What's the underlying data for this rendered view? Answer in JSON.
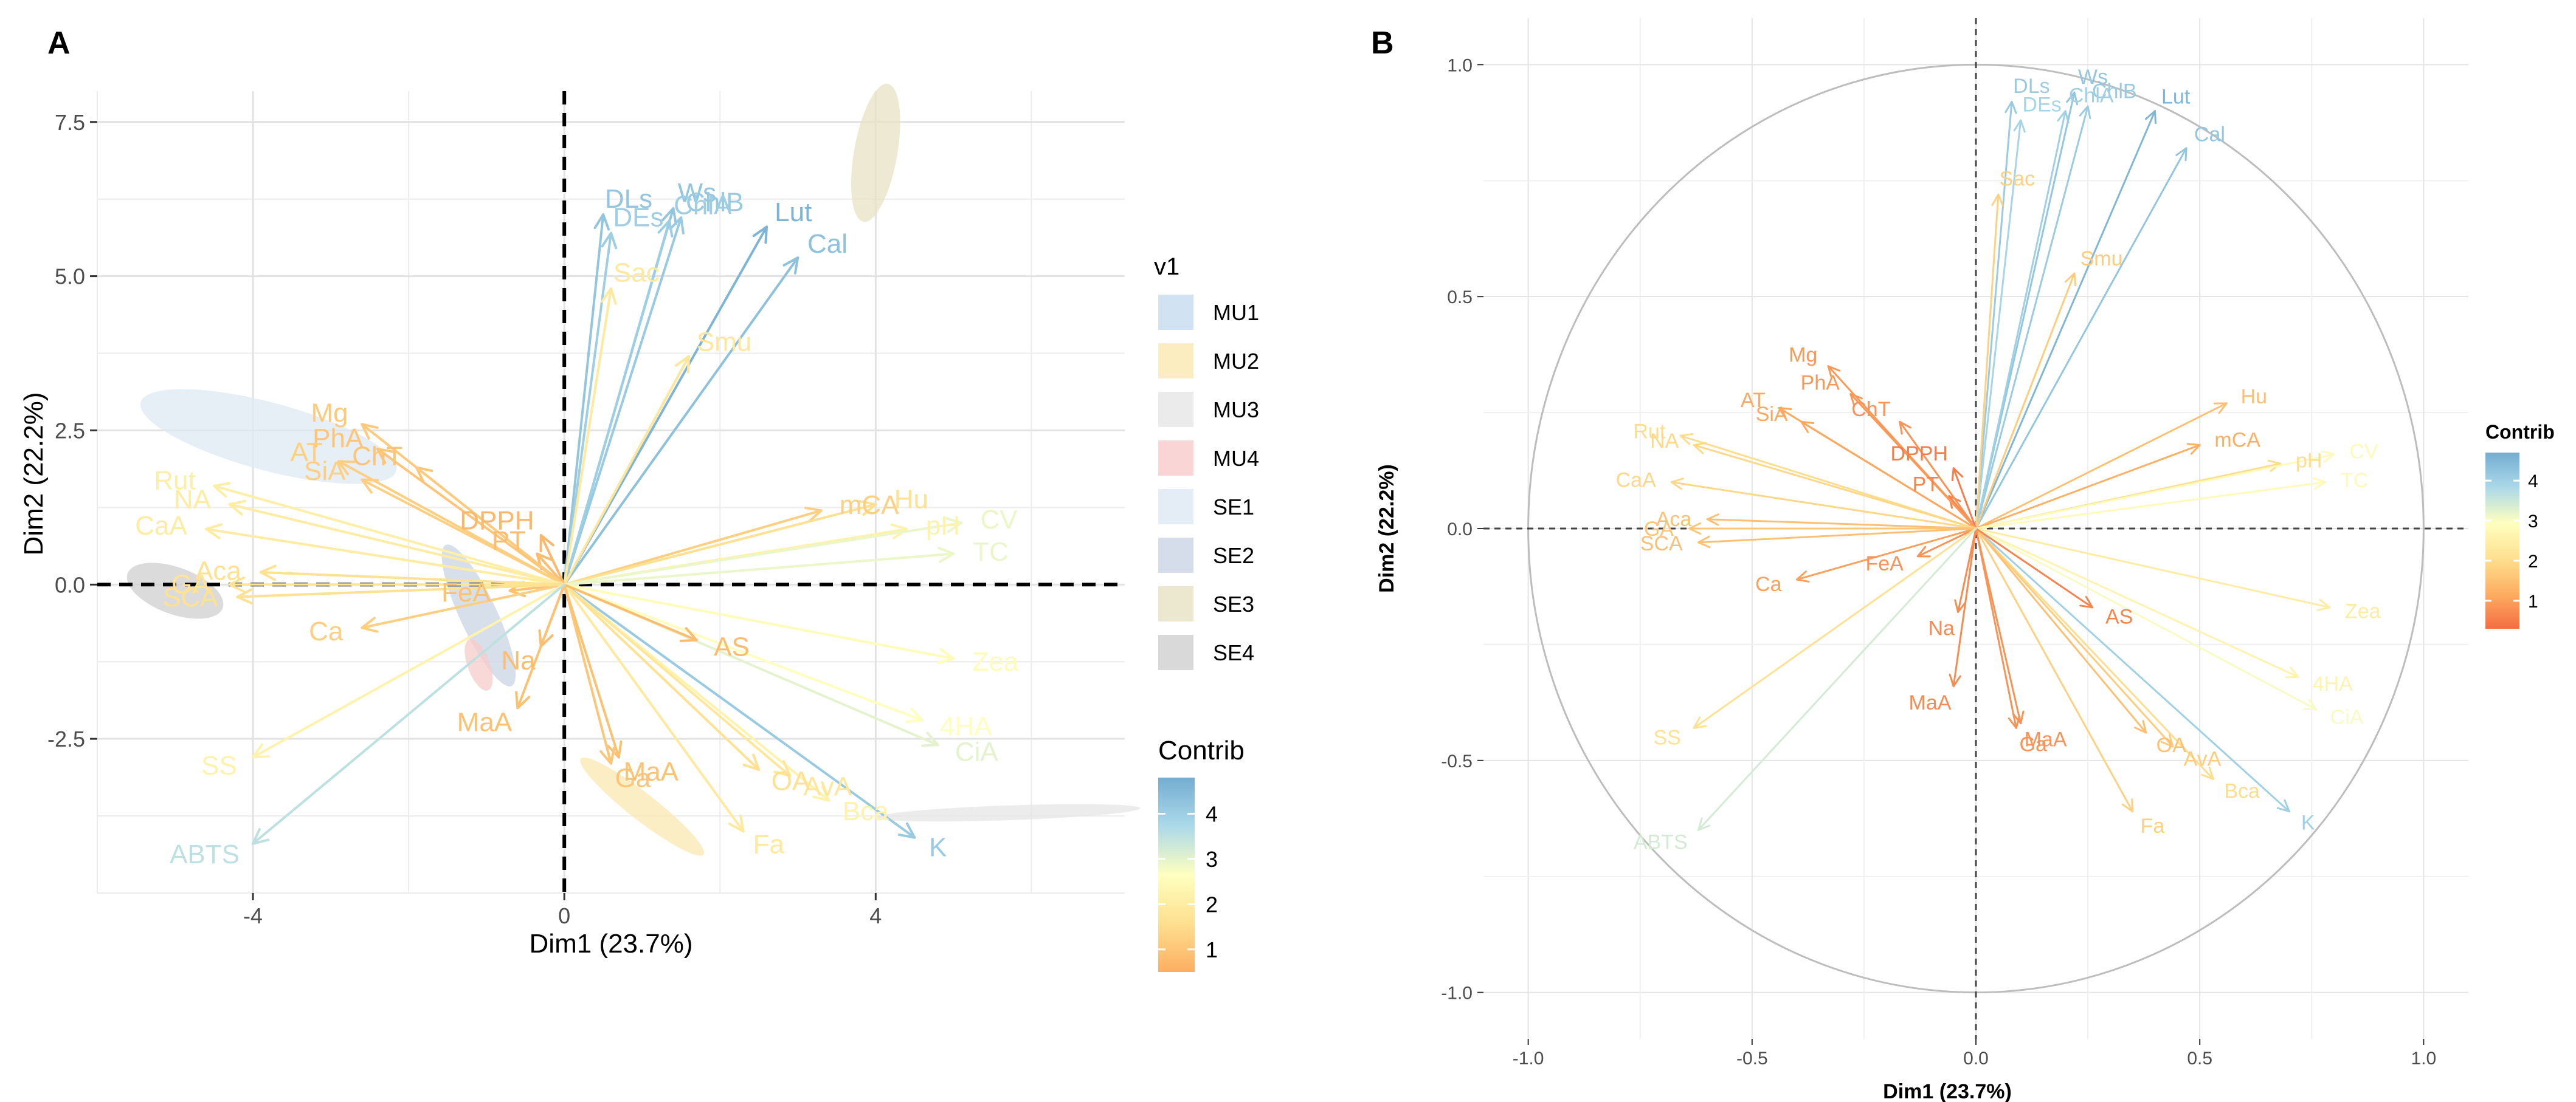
{
  "chart_data": [
    {
      "panel": "A",
      "type": "scatter",
      "subtype": "pca-biplot",
      "xlabel": "Dim1 (23.7%)",
      "ylabel": "Dim2 (22.2%)",
      "xlim": [
        -6.0,
        7.2
      ],
      "ylim": [
        -5.0,
        8.0
      ],
      "xticks": [
        -4,
        0,
        4
      ],
      "yticks": [
        -2.5,
        0.0,
        2.5,
        5.0,
        7.5
      ],
      "xtick_labels": [
        "-4",
        "0",
        "4"
      ],
      "ytick_labels": [
        "-2.5",
        "0.0",
        "2.5",
        "5.0",
        "7.5"
      ],
      "grid": true,
      "legend_groups": {
        "title": "v1",
        "items": [
          {
            "label": "MU1",
            "color": "#c6dbef"
          },
          {
            "label": "MU2",
            "color": "#fbe8b0"
          },
          {
            "label": "MU3",
            "color": "#e6e6e6"
          },
          {
            "label": "MU4",
            "color": "#f7cbcb"
          },
          {
            "label": "SE1",
            "color": "#dde8f3"
          },
          {
            "label": "SE2",
            "color": "#c9d5e3"
          },
          {
            "label": "SE3",
            "color": "#e7e2c4"
          },
          {
            "label": "SE4",
            "color": "#cfcfcf"
          }
        ]
      },
      "legend_contrib": {
        "title": "Contrib",
        "tick_labels": [
          "1",
          "2",
          "3",
          "4"
        ],
        "tick_values": [
          1,
          2,
          3,
          4
        ],
        "range": [
          0.5,
          4.8
        ],
        "colors": [
          "#fdae61",
          "#fee090",
          "#ffffbf",
          "#abd9e9",
          "#74add1"
        ]
      },
      "ellipses": [
        {
          "group": "SE3",
          "cx": 4.0,
          "cy": 7.0,
          "rx": 0.9,
          "ry": 0.35,
          "angle": 80,
          "color": "#e7e2c4"
        },
        {
          "group": "SE1",
          "cx": -3.8,
          "cy": 2.4,
          "rx": 1.7,
          "ry": 0.55,
          "angle": -15,
          "color": "#dde8f3"
        },
        {
          "group": "SE2",
          "cx": -1.1,
          "cy": -0.5,
          "rx": 1.0,
          "ry": 0.3,
          "angle": -65,
          "color": "#c9d5e3"
        },
        {
          "group": "MU4",
          "cx": -1.1,
          "cy": -1.3,
          "rx": 0.35,
          "ry": 0.18,
          "angle": -70,
          "color": "#f7cbcb"
        },
        {
          "group": "SE4",
          "cx": -5.0,
          "cy": -0.1,
          "rx": 0.65,
          "ry": 0.38,
          "angle": -20,
          "color": "#cfcfcf"
        },
        {
          "group": "MU2",
          "cx": 1.0,
          "cy": -3.6,
          "rx": 1.0,
          "ry": 0.22,
          "angle": -38,
          "color": "#fbe8b0"
        },
        {
          "group": "MU3",
          "cx": 5.7,
          "cy": -3.7,
          "rx": 1.7,
          "ry": 0.12,
          "angle": 2,
          "color": "#e6e6e6"
        }
      ],
      "vectors": [
        {
          "label": "DLs",
          "x": 0.5,
          "y": 6.0,
          "contrib": 4.2
        },
        {
          "label": "DEs",
          "x": 0.6,
          "y": 5.7,
          "contrib": 4.0
        },
        {
          "label": "Ws",
          "x": 1.4,
          "y": 6.1,
          "contrib": 4.2
        },
        {
          "label": "ChlB",
          "x": 1.5,
          "y": 5.95,
          "contrib": 4.1
        },
        {
          "label": "ChlA",
          "x": 1.35,
          "y": 5.9,
          "contrib": 4.0
        },
        {
          "label": "Lut",
          "x": 2.6,
          "y": 5.8,
          "contrib": 4.6
        },
        {
          "label": "Cal",
          "x": 3.0,
          "y": 5.3,
          "contrib": 4.3
        },
        {
          "label": "Smu",
          "x": 1.6,
          "y": 3.7,
          "contrib": 1.8
        },
        {
          "label": "Sac",
          "x": 0.6,
          "y": 4.8,
          "contrib": 1.9
        },
        {
          "label": "mCA",
          "x": 3.3,
          "y": 1.2,
          "contrib": 1.2
        },
        {
          "label": "Hu",
          "x": 4.0,
          "y": 1.3,
          "contrib": 1.6
        },
        {
          "label": "pH",
          "x": 4.4,
          "y": 0.9,
          "contrib": 2.2
        },
        {
          "label": "CV",
          "x": 5.1,
          "y": 1.0,
          "contrib": 2.9
        },
        {
          "label": "TC",
          "x": 5.0,
          "y": 0.5,
          "contrib": 2.9
        },
        {
          "label": "Zea",
          "x": 5.0,
          "y": -1.2,
          "contrib": 2.5
        },
        {
          "label": "4HA",
          "x": 4.6,
          "y": -2.2,
          "contrib": 2.6
        },
        {
          "label": "CiA",
          "x": 4.8,
          "y": -2.6,
          "contrib": 3.0
        },
        {
          "label": "K",
          "x": 4.5,
          "y": -4.1,
          "contrib": 4.1
        },
        {
          "label": "Bca",
          "x": 3.4,
          "y": -3.5,
          "contrib": 2.2
        },
        {
          "label": "AvA",
          "x": 2.9,
          "y": -3.1,
          "contrib": 1.8
        },
        {
          "label": "OA",
          "x": 2.5,
          "y": -3.0,
          "contrib": 1.6
        },
        {
          "label": "Fa",
          "x": 2.3,
          "y": -4.0,
          "contrib": 1.9
        },
        {
          "label": "AS",
          "x": 1.7,
          "y": -0.9,
          "contrib": 0.8
        },
        {
          "label": "MaA",
          "x": 0.7,
          "y": -2.8,
          "contrib": 0.9
        },
        {
          "label": "Ga",
          "x": 0.6,
          "y": -2.9,
          "contrib": 1.0
        },
        {
          "label": "Na",
          "x": -0.3,
          "y": -1.0,
          "contrib": 0.8
        },
        {
          "label": "MaA",
          "x": -0.6,
          "y": -2.0,
          "contrib": 0.9
        },
        {
          "label": "FeA",
          "x": -0.7,
          "y": -0.1,
          "contrib": 0.9
        },
        {
          "label": "PT",
          "x": -0.35,
          "y": 0.5,
          "contrib": 0.8
        },
        {
          "label": "DPPH",
          "x": -0.3,
          "y": 0.8,
          "contrib": 0.7
        },
        {
          "label": "ChT",
          "x": -1.9,
          "y": 1.9,
          "contrib": 1.0
        },
        {
          "label": "PhA",
          "x": -2.4,
          "y": 2.2,
          "contrib": 1.0
        },
        {
          "label": "Mg",
          "x": -2.6,
          "y": 2.6,
          "contrib": 1.1
        },
        {
          "label": "SiA",
          "x": -2.6,
          "y": 1.7,
          "contrib": 1.2
        },
        {
          "label": "AT",
          "x": -2.9,
          "y": 2.0,
          "contrib": 1.2
        },
        {
          "label": "Ca",
          "x": -2.6,
          "y": -0.7,
          "contrib": 1.2
        },
        {
          "label": "Rut",
          "x": -4.5,
          "y": 1.6,
          "contrib": 2.1
        },
        {
          "label": "NA",
          "x": -4.3,
          "y": 1.3,
          "contrib": 2.0
        },
        {
          "label": "CaA",
          "x": -4.6,
          "y": 0.9,
          "contrib": 2.0
        },
        {
          "label": "Aca",
          "x": -3.9,
          "y": 0.2,
          "contrib": 1.6
        },
        {
          "label": "GA",
          "x": -4.3,
          "y": 0.0,
          "contrib": 1.7
        },
        {
          "label": "SCA",
          "x": -4.2,
          "y": -0.2,
          "contrib": 1.6
        },
        {
          "label": "SS",
          "x": -4.0,
          "y": -2.8,
          "contrib": 2.2
        },
        {
          "label": "ABTS",
          "x": -4.0,
          "y": -4.2,
          "contrib": 3.5
        }
      ]
    },
    {
      "panel": "B",
      "type": "scatter",
      "subtype": "pca-correlation-circle",
      "xlabel": "Dim1 (23.7%)",
      "ylabel": "Dim2 (22.2%)",
      "xlim": [
        -1.1,
        1.1
      ],
      "ylim": [
        -1.1,
        1.1
      ],
      "xticks": [
        -1.0,
        -0.5,
        0.0,
        0.5,
        1.0
      ],
      "yticks": [
        -1.0,
        -0.5,
        0.0,
        0.5,
        1.0
      ],
      "xtick_labels": [
        "-1.0",
        "-0.5",
        "0.0",
        "0.5",
        "1.0"
      ],
      "ytick_labels": [
        "-1.0",
        "-0.5",
        "0.0",
        "0.5",
        "1.0"
      ],
      "grid": true,
      "legend_contrib": {
        "title": "Contrib",
        "tick_labels": [
          "1",
          "2",
          "3",
          "4"
        ],
        "tick_values": [
          1,
          2,
          3,
          4
        ],
        "range": [
          0.3,
          4.7
        ],
        "colors": [
          "#f46d43",
          "#fdae61",
          "#fee090",
          "#ffffbf",
          "#abd9e9",
          "#74add1"
        ]
      },
      "vectors": [
        {
          "label": "DLs",
          "x": 0.08,
          "y": 0.92,
          "contrib": 4.1
        },
        {
          "label": "DEs",
          "x": 0.1,
          "y": 0.88,
          "contrib": 3.9
        },
        {
          "label": "Ws",
          "x": 0.22,
          "y": 0.94,
          "contrib": 4.2
        },
        {
          "label": "ChlB",
          "x": 0.25,
          "y": 0.91,
          "contrib": 4.1
        },
        {
          "label": "ChlA",
          "x": 0.2,
          "y": 0.9,
          "contrib": 4.0
        },
        {
          "label": "Lut",
          "x": 0.4,
          "y": 0.9,
          "contrib": 4.5
        },
        {
          "label": "Cal",
          "x": 0.47,
          "y": 0.82,
          "contrib": 4.2
        },
        {
          "label": "Sac",
          "x": 0.05,
          "y": 0.72,
          "contrib": 1.8
        },
        {
          "label": "Smu",
          "x": 0.22,
          "y": 0.55,
          "contrib": 1.7
        },
        {
          "label": "Hu",
          "x": 0.56,
          "y": 0.27,
          "contrib": 1.5
        },
        {
          "label": "mCA",
          "x": 0.5,
          "y": 0.18,
          "contrib": 1.2
        },
        {
          "label": "pH",
          "x": 0.68,
          "y": 0.14,
          "contrib": 2.0
        },
        {
          "label": "CV",
          "x": 0.8,
          "y": 0.16,
          "contrib": 2.8
        },
        {
          "label": "TC",
          "x": 0.78,
          "y": 0.1,
          "contrib": 2.8
        },
        {
          "label": "Zea",
          "x": 0.79,
          "y": -0.17,
          "contrib": 2.4
        },
        {
          "label": "4HA",
          "x": 0.72,
          "y": -0.32,
          "contrib": 2.6
        },
        {
          "label": "CiA",
          "x": 0.76,
          "y": -0.39,
          "contrib": 3.0
        },
        {
          "label": "K",
          "x": 0.7,
          "y": -0.61,
          "contrib": 4.0
        },
        {
          "label": "Bca",
          "x": 0.53,
          "y": -0.54,
          "contrib": 2.0
        },
        {
          "label": "AvA",
          "x": 0.44,
          "y": -0.47,
          "contrib": 1.7
        },
        {
          "label": "OA",
          "x": 0.38,
          "y": -0.44,
          "contrib": 1.5
        },
        {
          "label": "Fa",
          "x": 0.35,
          "y": -0.61,
          "contrib": 1.8
        },
        {
          "label": "AS",
          "x": 0.26,
          "y": -0.17,
          "contrib": 0.6
        },
        {
          "label": "MaA",
          "x": 0.1,
          "y": -0.42,
          "contrib": 0.8
        },
        {
          "label": "Ga",
          "x": 0.09,
          "y": -0.43,
          "contrib": 0.8
        },
        {
          "label": "Na",
          "x": -0.04,
          "y": -0.18,
          "contrib": 0.7
        },
        {
          "label": "MaA",
          "x": -0.05,
          "y": -0.34,
          "contrib": 0.7
        },
        {
          "label": "FeA",
          "x": -0.13,
          "y": -0.06,
          "contrib": 0.8
        },
        {
          "label": "Ca",
          "x": -0.4,
          "y": -0.11,
          "contrib": 1.0
        },
        {
          "label": "PT",
          "x": -0.06,
          "y": 0.07,
          "contrib": 0.6
        },
        {
          "label": "DPPH",
          "x": -0.05,
          "y": 0.13,
          "contrib": 0.5
        },
        {
          "label": "ChT",
          "x": -0.17,
          "y": 0.23,
          "contrib": 0.8
        },
        {
          "label": "PhA",
          "x": -0.28,
          "y": 0.29,
          "contrib": 0.9
        },
        {
          "label": "Mg",
          "x": -0.33,
          "y": 0.35,
          "contrib": 0.9
        },
        {
          "label": "SiA",
          "x": -0.39,
          "y": 0.23,
          "contrib": 1.1
        },
        {
          "label": "AT",
          "x": -0.44,
          "y": 0.26,
          "contrib": 1.1
        },
        {
          "label": "Rut",
          "x": -0.66,
          "y": 0.2,
          "contrib": 2.0
        },
        {
          "label": "NA",
          "x": -0.63,
          "y": 0.18,
          "contrib": 1.9
        },
        {
          "label": "CaA",
          "x": -0.68,
          "y": 0.1,
          "contrib": 1.9
        },
        {
          "label": "Aca",
          "x": -0.6,
          "y": 0.02,
          "contrib": 1.5
        },
        {
          "label": "GA",
          "x": -0.64,
          "y": 0.0,
          "contrib": 1.6
        },
        {
          "label": "SCA",
          "x": -0.62,
          "y": -0.03,
          "contrib": 1.5
        },
        {
          "label": "SS",
          "x": -0.63,
          "y": -0.43,
          "contrib": 2.1
        },
        {
          "label": "ABTS",
          "x": -0.62,
          "y": -0.65,
          "contrib": 3.4
        }
      ]
    }
  ]
}
